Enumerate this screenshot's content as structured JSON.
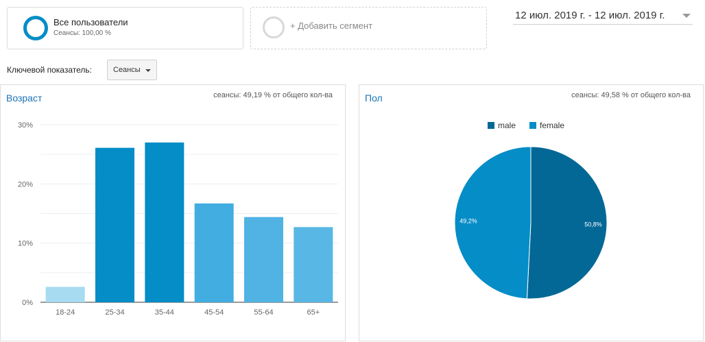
{
  "segments": {
    "all_users": {
      "title": "Все пользователи",
      "subtitle": "Сеансы: 100,00 %"
    },
    "add_label": "+ Добавить сегмент"
  },
  "date_range": "12 июл. 2019 г. - 12 июл. 2019 г.",
  "metric": {
    "label": "Ключевой показатель:",
    "selected": "Сеансы"
  },
  "age_panel": {
    "title": "Возраст",
    "note": "сеансы: 49,19 % от общего кол-ва"
  },
  "gender_panel": {
    "title": "Пол",
    "note": "сеансы: 49,58 % от общего кол-ва"
  },
  "chart_data": [
    {
      "type": "bar",
      "title": "Возраст",
      "categories": [
        "18-24",
        "25-34",
        "35-44",
        "45-54",
        "55-64",
        "65+"
      ],
      "values": [
        2.6,
        26.1,
        27.0,
        16.7,
        14.4,
        12.7
      ],
      "colors": [
        "#a6dbf2",
        "#058dc7",
        "#058dc7",
        "#41ade1",
        "#50b3e3",
        "#58b7e4"
      ],
      "yticks": [
        "0%",
        "10%",
        "20%",
        "30%"
      ],
      "ylim": [
        0,
        30
      ],
      "grid": true
    },
    {
      "type": "pie",
      "title": "Пол",
      "labels": [
        "male",
        "female"
      ],
      "values": [
        50.8,
        49.2
      ],
      "value_labels": [
        "50,8%",
        "49,2%"
      ],
      "colors": [
        "#036896",
        "#058dc7"
      ],
      "legend": "top-center"
    }
  ]
}
